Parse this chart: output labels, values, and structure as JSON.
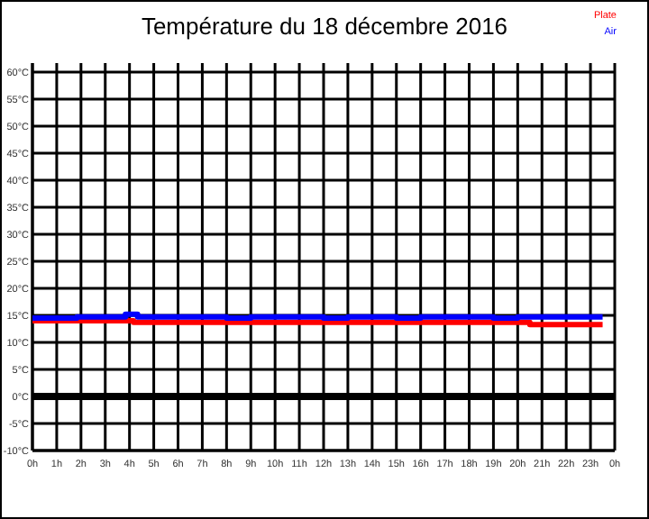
{
  "chart_data": {
    "type": "step",
    "title": "Température du 18 décembre 2016",
    "xlim": [
      "2016-12-18T00:00",
      "2016-12-19T00:00"
    ],
    "xticks": [
      {
        "value": "2016-12-18T00:00",
        "label": "0h"
      },
      {
        "value": "2016-12-18T01:00",
        "label": "1h"
      },
      {
        "value": "2016-12-18T02:00",
        "label": "2h"
      },
      {
        "value": "2016-12-18T03:00",
        "label": "3h"
      },
      {
        "value": "2016-12-18T04:00",
        "label": "4h"
      },
      {
        "value": "2016-12-18T05:00",
        "label": "5h"
      },
      {
        "value": "2016-12-18T06:00",
        "label": "6h"
      },
      {
        "value": "2016-12-18T07:00",
        "label": "7h"
      },
      {
        "value": "2016-12-18T08:00",
        "label": "8h"
      },
      {
        "value": "2016-12-18T09:00",
        "label": "9h"
      },
      {
        "value": "2016-12-18T10:00",
        "label": "10h"
      },
      {
        "value": "2016-12-18T11:00",
        "label": "11h"
      },
      {
        "value": "2016-12-18T12:00",
        "label": "12h"
      },
      {
        "value": "2016-12-18T13:00",
        "label": "13h"
      },
      {
        "value": "2016-12-18T14:00",
        "label": "14h"
      },
      {
        "value": "2016-12-18T15:00",
        "label": "15h"
      },
      {
        "value": "2016-12-18T16:00",
        "label": "16h"
      },
      {
        "value": "2016-12-18T17:00",
        "label": "17h"
      },
      {
        "value": "2016-12-18T18:00",
        "label": "18h"
      },
      {
        "value": "2016-12-18T19:00",
        "label": "19h"
      },
      {
        "value": "2016-12-18T20:00",
        "label": "20h"
      },
      {
        "value": "2016-12-18T21:00",
        "label": "21h"
      },
      {
        "value": "2016-12-18T22:00",
        "label": "22h"
      },
      {
        "value": "2016-12-18T23:00",
        "label": "23h"
      },
      {
        "value": "2016-12-19T00:00",
        "label": "0h"
      }
    ],
    "ylim": [
      -10,
      60
    ],
    "yticks": [
      {
        "value": -10,
        "label": "-10°C"
      },
      {
        "value": -5,
        "label": "-5°C"
      },
      {
        "value": 0,
        "label": "0°C"
      },
      {
        "value": 5,
        "label": "5°C"
      },
      {
        "value": 10,
        "label": "10°C"
      },
      {
        "value": 15,
        "label": "15°C"
      },
      {
        "value": 20,
        "label": "20°C"
      },
      {
        "value": 25,
        "label": "25°C"
      },
      {
        "value": 30,
        "label": "30°C"
      },
      {
        "value": 35,
        "label": "35°C"
      },
      {
        "value": 40,
        "label": "40°C"
      },
      {
        "value": 45,
        "label": "45°C"
      },
      {
        "value": 50,
        "label": "50°C"
      },
      {
        "value": 55,
        "label": "55°C"
      },
      {
        "value": 60,
        "label": "60°C"
      }
    ],
    "grid": true,
    "legend": "top right",
    "ref_lines": [
      {
        "axis": "y",
        "value": 0,
        "color": "#000000"
      }
    ],
    "series": [
      {
        "name": "Plate",
        "color": "#ff0000",
        "x": [
          "2016-12-18T00:00",
          "2016-12-18T04:10",
          "2016-12-18T20:30",
          "2016-12-18T23:30"
        ],
        "values": [
          14,
          13.7,
          13.3,
          13.3
        ]
      },
      {
        "name": "Air",
        "color": "#0000ff",
        "x": [
          "2016-12-18T00:00",
          "2016-12-18T01:50",
          "2016-12-18T03:50",
          "2016-12-18T04:20",
          "2016-12-18T08:00",
          "2016-12-18T09:00",
          "2016-12-18T12:00",
          "2016-12-18T13:00",
          "2016-12-18T15:00",
          "2016-12-18T16:00",
          "2016-12-18T19:00",
          "2016-12-18T20:00",
          "2016-12-18T23:30"
        ],
        "values": [
          14.5,
          14.7,
          15.2,
          14.7,
          14.5,
          14.7,
          14.5,
          14.7,
          14.5,
          14.7,
          14.5,
          14.7,
          14.7
        ]
      }
    ]
  }
}
